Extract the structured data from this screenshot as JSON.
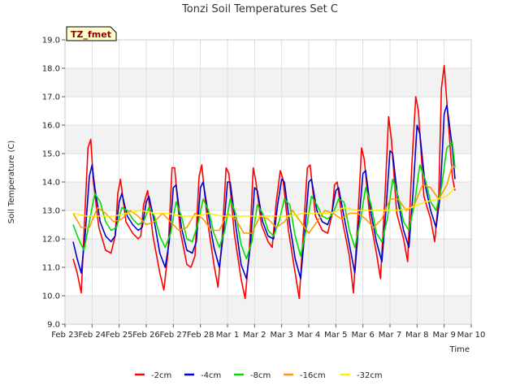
{
  "chart_data": {
    "type": "line",
    "title": "Tonzi Soil Temperatures Set C",
    "xlabel": "Time",
    "ylabel": "Soil Temperature (C)",
    "site_label": "TZ_fmet",
    "ylim": [
      9.0,
      19.0
    ],
    "yticks": [
      "9.0",
      "10.0",
      "11.0",
      "12.0",
      "13.0",
      "14.0",
      "15.0",
      "16.0",
      "17.0",
      "18.0",
      "19.0"
    ],
    "xlim": [
      0,
      15
    ],
    "xticks": [
      "Feb 23",
      "Feb 24",
      "Feb 25",
      "Feb 26",
      "Feb 27",
      "Feb 28",
      "Mar 1",
      "Mar 2",
      "Mar 3",
      "Mar 4",
      "Mar 5",
      "Mar 6",
      "Mar 7",
      "Mar 8",
      "Mar 9",
      "Mar 10"
    ],
    "x_units": "days since Feb 23",
    "grid": true,
    "legend_position": "bottom",
    "series": [
      {
        "name": "-2cm",
        "color": "#ff0000",
        "x": [
          0.3,
          0.45,
          0.6,
          0.75,
          0.85,
          0.95,
          1.05,
          1.25,
          1.5,
          1.7,
          1.85,
          1.95,
          2.05,
          2.25,
          2.5,
          2.7,
          2.8,
          2.9,
          3.05,
          3.25,
          3.5,
          3.65,
          3.8,
          3.95,
          4.05,
          4.25,
          4.5,
          4.65,
          4.8,
          4.95,
          5.05,
          5.25,
          5.5,
          5.65,
          5.8,
          5.95,
          6.05,
          6.25,
          6.5,
          6.65,
          6.8,
          6.95,
          7.05,
          7.25,
          7.5,
          7.65,
          7.8,
          7.95,
          8.05,
          8.25,
          8.5,
          8.65,
          8.8,
          8.95,
          9.05,
          9.25,
          9.5,
          9.7,
          9.85,
          9.95,
          10.05,
          10.25,
          10.5,
          10.65,
          10.8,
          10.95,
          11.05,
          11.25,
          11.5,
          11.65,
          11.8,
          11.95,
          12.05,
          12.25,
          12.5,
          12.65,
          12.8,
          12.95,
          13.05,
          13.25,
          13.5,
          13.65,
          13.8,
          13.9,
          14.0,
          14.1,
          14.3,
          14.4
        ],
        "y": [
          11.3,
          10.8,
          10.1,
          13.2,
          15.2,
          15.5,
          14.0,
          12.4,
          11.6,
          11.5,
          12.1,
          13.6,
          14.1,
          12.6,
          12.2,
          12.0,
          12.1,
          13.2,
          13.7,
          12.1,
          10.8,
          10.2,
          11.5,
          14.5,
          14.5,
          12.3,
          11.1,
          11.0,
          11.4,
          14.2,
          14.6,
          12.7,
          11.1,
          10.3,
          12.0,
          14.5,
          14.3,
          12.2,
          10.6,
          9.9,
          11.5,
          14.5,
          14.0,
          12.5,
          11.9,
          11.7,
          13.3,
          14.4,
          14.1,
          12.3,
          10.8,
          9.9,
          12.2,
          14.5,
          14.6,
          12.8,
          12.3,
          12.2,
          12.8,
          13.9,
          14.0,
          12.6,
          11.4,
          10.1,
          12.5,
          15.2,
          14.8,
          12.8,
          11.5,
          10.6,
          13.2,
          16.3,
          15.5,
          12.9,
          12.0,
          11.2,
          14.5,
          17.0,
          16.5,
          13.5,
          12.7,
          11.9,
          13.5,
          17.3,
          18.1,
          16.8,
          14.2,
          13.7
        ]
      },
      {
        "name": "-4cm",
        "color": "#0000cc",
        "x": [
          0.3,
          0.45,
          0.6,
          0.75,
          0.9,
          1.0,
          1.1,
          1.3,
          1.5,
          1.7,
          1.85,
          2.0,
          2.1,
          2.3,
          2.5,
          2.7,
          2.85,
          3.0,
          3.1,
          3.3,
          3.5,
          3.7,
          3.85,
          4.0,
          4.1,
          4.3,
          4.5,
          4.7,
          4.85,
          5.0,
          5.1,
          5.3,
          5.5,
          5.7,
          5.85,
          6.0,
          6.1,
          6.3,
          6.5,
          6.7,
          6.85,
          7.0,
          7.1,
          7.3,
          7.5,
          7.7,
          7.85,
          8.0,
          8.1,
          8.3,
          8.5,
          8.7,
          8.85,
          9.0,
          9.1,
          9.3,
          9.5,
          9.7,
          9.85,
          10.0,
          10.1,
          10.3,
          10.5,
          10.7,
          10.85,
          11.0,
          11.1,
          11.3,
          11.5,
          11.7,
          11.85,
          12.0,
          12.1,
          12.3,
          12.5,
          12.7,
          12.85,
          13.0,
          13.1,
          13.3,
          13.5,
          13.7,
          13.85,
          14.0,
          14.1,
          14.3,
          14.4
        ],
        "y": [
          11.9,
          11.3,
          10.8,
          12.2,
          14.2,
          14.6,
          13.8,
          12.6,
          12.1,
          11.9,
          12.1,
          13.3,
          13.6,
          12.8,
          12.5,
          12.3,
          12.4,
          13.3,
          13.5,
          12.6,
          11.5,
          11.0,
          11.9,
          13.8,
          13.9,
          12.4,
          11.6,
          11.5,
          11.9,
          13.8,
          14.0,
          12.8,
          11.7,
          11.0,
          12.2,
          14.0,
          14.0,
          12.5,
          11.1,
          10.6,
          11.8,
          13.8,
          13.7,
          12.6,
          12.1,
          12.0,
          13.2,
          14.1,
          14.0,
          12.5,
          11.3,
          10.6,
          12.2,
          14.0,
          14.1,
          13.0,
          12.6,
          12.5,
          12.9,
          13.7,
          13.8,
          12.8,
          11.8,
          10.8,
          12.6,
          14.3,
          14.4,
          12.9,
          11.9,
          11.2,
          13.0,
          15.1,
          15.0,
          13.3,
          12.3,
          11.7,
          13.6,
          16.0,
          15.7,
          13.9,
          13.0,
          12.4,
          13.5,
          16.4,
          16.7,
          15.2,
          14.1
        ]
      },
      {
        "name": "-8cm",
        "color": "#00dd00",
        "x": [
          0.3,
          0.5,
          0.7,
          0.9,
          1.1,
          1.3,
          1.5,
          1.7,
          1.9,
          2.1,
          2.3,
          2.5,
          2.7,
          2.9,
          3.1,
          3.3,
          3.5,
          3.7,
          3.9,
          4.1,
          4.3,
          4.5,
          4.7,
          4.9,
          5.1,
          5.3,
          5.5,
          5.7,
          5.9,
          6.1,
          6.3,
          6.5,
          6.7,
          6.9,
          7.1,
          7.3,
          7.5,
          7.7,
          7.9,
          8.1,
          8.3,
          8.5,
          8.7,
          8.9,
          9.1,
          9.3,
          9.5,
          9.7,
          9.9,
          10.1,
          10.3,
          10.5,
          10.7,
          10.9,
          11.1,
          11.3,
          11.5,
          11.7,
          11.9,
          12.1,
          12.3,
          12.5,
          12.7,
          12.9,
          13.1,
          13.3,
          13.5,
          13.7,
          13.9,
          14.1,
          14.3,
          14.4
        ],
        "y": [
          12.5,
          12.0,
          11.6,
          12.6,
          13.6,
          13.3,
          12.6,
          12.3,
          12.4,
          13.1,
          13.0,
          12.7,
          12.5,
          12.6,
          13.1,
          12.8,
          12.1,
          11.7,
          12.2,
          13.3,
          12.8,
          12.0,
          11.9,
          12.5,
          13.4,
          13.0,
          12.2,
          11.7,
          12.3,
          13.4,
          12.9,
          11.8,
          11.3,
          11.9,
          13.2,
          12.9,
          12.3,
          12.1,
          12.6,
          13.4,
          13.2,
          12.1,
          11.4,
          12.3,
          13.5,
          13.2,
          12.8,
          12.7,
          12.9,
          13.4,
          13.3,
          12.3,
          11.7,
          12.6,
          13.8,
          13.2,
          12.2,
          11.9,
          12.7,
          14.1,
          13.5,
          12.6,
          12.3,
          13.2,
          14.6,
          14.1,
          13.3,
          13.0,
          13.8,
          15.2,
          15.4,
          14.5
        ]
      },
      {
        "name": "-16cm",
        "color": "#ff9900",
        "x": [
          0.3,
          0.6,
          0.9,
          1.2,
          1.5,
          1.8,
          2.1,
          2.4,
          2.7,
          3.0,
          3.3,
          3.6,
          3.9,
          4.2,
          4.5,
          4.8,
          5.1,
          5.4,
          5.7,
          6.0,
          6.3,
          6.6,
          6.9,
          7.2,
          7.5,
          7.8,
          8.1,
          8.4,
          8.7,
          9.0,
          9.3,
          9.6,
          9.9,
          10.2,
          10.5,
          10.8,
          11.1,
          11.4,
          11.7,
          12.0,
          12.3,
          12.6,
          12.9,
          13.2,
          13.5,
          13.8,
          14.1,
          14.3,
          14.4
        ],
        "y": [
          12.9,
          12.4,
          12.4,
          13.1,
          12.9,
          12.6,
          12.7,
          13.0,
          12.8,
          12.5,
          12.6,
          12.9,
          12.6,
          12.3,
          12.4,
          12.9,
          12.7,
          12.3,
          12.3,
          12.9,
          12.7,
          12.2,
          12.2,
          12.8,
          12.7,
          12.4,
          12.6,
          13.0,
          12.6,
          12.2,
          12.6,
          13.0,
          12.9,
          12.7,
          12.9,
          12.9,
          12.7,
          12.4,
          12.7,
          13.4,
          13.4,
          13.0,
          13.2,
          13.9,
          13.8,
          13.4,
          13.9,
          14.6,
          14.5
        ]
      },
      {
        "name": "-32cm",
        "color": "#ffee00",
        "x": [
          0.3,
          0.8,
          1.3,
          1.8,
          2.3,
          2.8,
          3.3,
          3.8,
          4.3,
          4.8,
          5.3,
          5.8,
          6.3,
          6.8,
          7.3,
          7.8,
          8.3,
          8.8,
          9.3,
          9.8,
          10.3,
          10.8,
          11.3,
          11.8,
          12.3,
          12.8,
          13.3,
          13.8,
          14.1,
          14.4
        ],
        "y": [
          12.9,
          12.8,
          12.8,
          12.8,
          12.9,
          13.0,
          12.9,
          12.9,
          12.8,
          12.8,
          12.9,
          12.8,
          12.8,
          12.8,
          12.8,
          12.8,
          12.8,
          12.9,
          12.9,
          12.9,
          13.1,
          13.0,
          13.0,
          13.0,
          13.0,
          13.1,
          13.3,
          13.4,
          13.5,
          13.8
        ]
      }
    ]
  }
}
